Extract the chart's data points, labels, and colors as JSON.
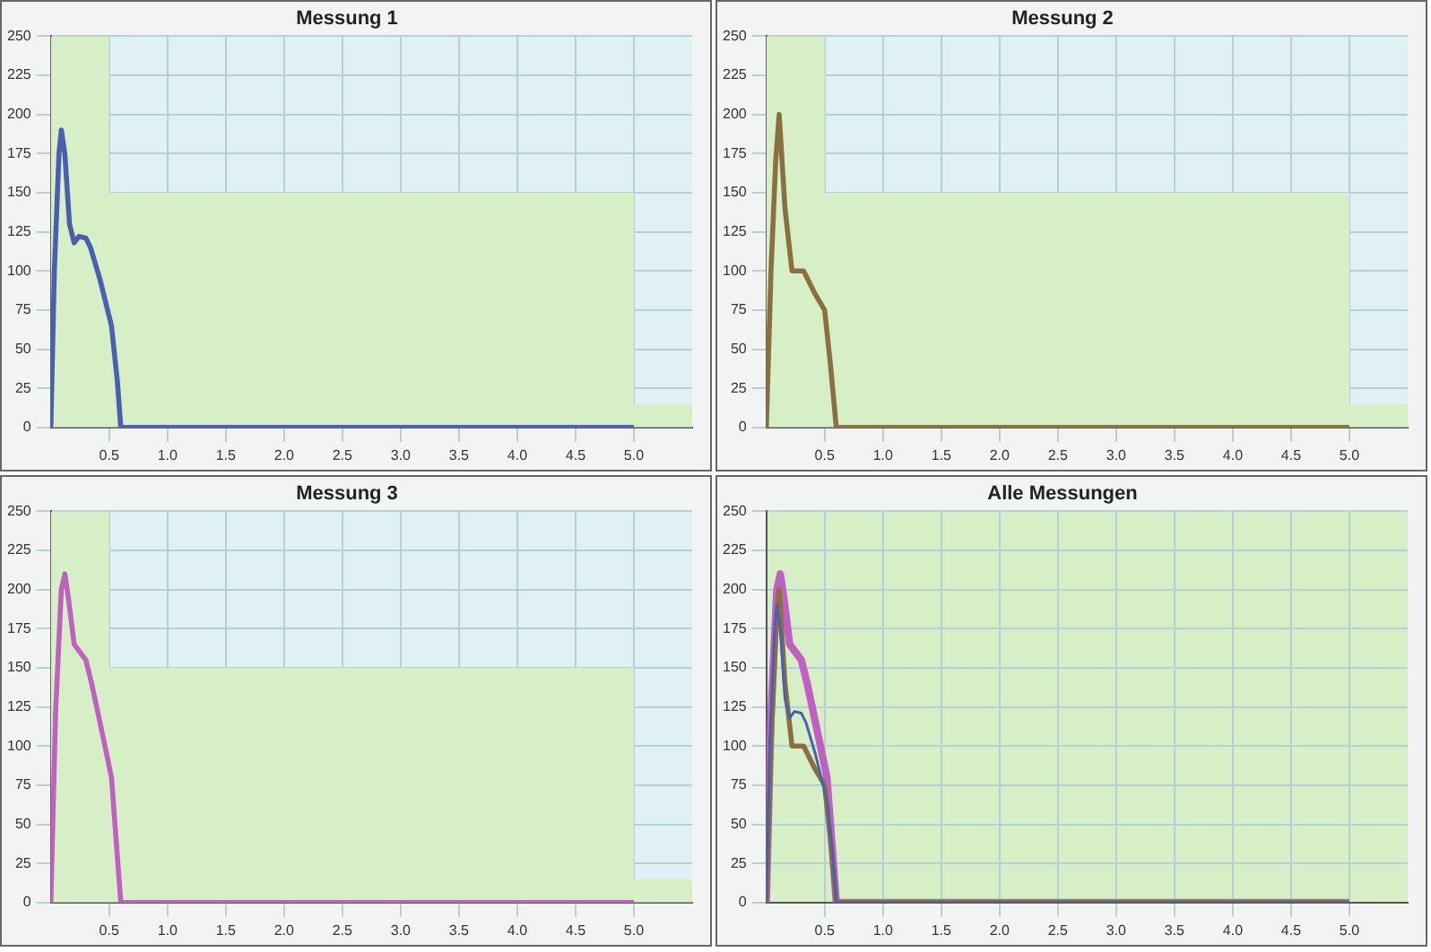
{
  "chart_data": [
    {
      "type": "line",
      "title": "Messung 1",
      "xlim": [
        0,
        5.5
      ],
      "ylim": [
        0,
        250
      ],
      "grid": true,
      "marker": "none",
      "xticks": [
        {
          "value": 0.5,
          "label": "0.5"
        },
        {
          "value": 1,
          "label": "1.0"
        },
        {
          "value": 1.5,
          "label": "1.5"
        },
        {
          "value": 2,
          "label": "2.0"
        },
        {
          "value": 2.5,
          "label": "2.5"
        },
        {
          "value": 3,
          "label": "3.0"
        },
        {
          "value": 3.5,
          "label": "3.5"
        },
        {
          "value": 4,
          "label": "4.0"
        },
        {
          "value": 4.5,
          "label": "4.5"
        },
        {
          "value": 5,
          "label": "5.0"
        }
      ],
      "yticks": [
        0,
        25,
        50,
        75,
        100,
        125,
        150,
        175,
        200,
        225,
        250
      ],
      "series": [
        {
          "type": "area",
          "color": "#d6efc6",
          "x": [
            0,
            0.5,
            0.5,
            5,
            5,
            5.5
          ],
          "values": [
            250,
            250,
            150,
            150,
            15,
            15
          ]
        },
        {
          "color": "#4a5fb0",
          "x": [
            0,
            0.03,
            0.07,
            0.09,
            0.12,
            0.16,
            0.2,
            0.24,
            0.3,
            0.34,
            0.42,
            0.52,
            0.57,
            0.6,
            5
          ],
          "values": [
            0,
            100,
            175,
            190,
            175,
            130,
            118,
            122,
            121,
            115,
            95,
            65,
            30,
            0,
            0
          ]
        }
      ]
    },
    {
      "type": "line",
      "title": "Messung 2",
      "xlim": [
        0,
        5.5
      ],
      "ylim": [
        0,
        250
      ],
      "grid": true,
      "marker": "none",
      "xticks": [
        {
          "value": 0.5,
          "label": "0.5"
        },
        {
          "value": 1,
          "label": "1.0"
        },
        {
          "value": 1.5,
          "label": "1.5"
        },
        {
          "value": 2,
          "label": "2.0"
        },
        {
          "value": 2.5,
          "label": "2.5"
        },
        {
          "value": 3,
          "label": "3.0"
        },
        {
          "value": 3.5,
          "label": "3.5"
        },
        {
          "value": 4,
          "label": "4.0"
        },
        {
          "value": 4.5,
          "label": "4.5"
        },
        {
          "value": 5,
          "label": "5.0"
        }
      ],
      "yticks": [
        0,
        25,
        50,
        75,
        100,
        125,
        150,
        175,
        200,
        225,
        250
      ],
      "series": [
        {
          "type": "area",
          "color": "#d6efc6",
          "x": [
            0,
            0.5,
            0.5,
            5,
            5,
            5.5
          ],
          "values": [
            250,
            250,
            150,
            150,
            15,
            15
          ]
        },
        {
          "color": "#8a7040",
          "x": [
            0,
            0.04,
            0.08,
            0.11,
            0.16,
            0.22,
            0.32,
            0.42,
            0.5,
            0.55,
            0.6,
            5
          ],
          "values": [
            0,
            100,
            170,
            200,
            140,
            100,
            100,
            85,
            75,
            40,
            0,
            0
          ]
        }
      ]
    },
    {
      "type": "line",
      "title": "Messung 3",
      "xlim": [
        0,
        5.5
      ],
      "ylim": [
        0,
        250
      ],
      "grid": true,
      "marker": "none",
      "xticks": [
        {
          "value": 0.5,
          "label": "0.5"
        },
        {
          "value": 1,
          "label": "1.0"
        },
        {
          "value": 1.5,
          "label": "1.5"
        },
        {
          "value": 2,
          "label": "2.0"
        },
        {
          "value": 2.5,
          "label": "2.5"
        },
        {
          "value": 3,
          "label": "3.0"
        },
        {
          "value": 3.5,
          "label": "3.5"
        },
        {
          "value": 4,
          "label": "4.0"
        },
        {
          "value": 4.5,
          "label": "4.5"
        },
        {
          "value": 5,
          "label": "5.0"
        }
      ],
      "yticks": [
        0,
        25,
        50,
        75,
        100,
        125,
        150,
        175,
        200,
        225,
        250
      ],
      "series": [
        {
          "type": "area",
          "color": "#d6efc6",
          "x": [
            0,
            0.5,
            0.5,
            5,
            5,
            5.5
          ],
          "values": [
            250,
            250,
            150,
            150,
            15,
            15
          ]
        },
        {
          "color": "#c060c0",
          "x": [
            0,
            0.04,
            0.09,
            0.12,
            0.15,
            0.2,
            0.25,
            0.3,
            0.35,
            0.45,
            0.52,
            0.56,
            0.6,
            5
          ],
          "values": [
            0,
            120,
            200,
            210,
            195,
            165,
            160,
            155,
            140,
            105,
            80,
            40,
            0,
            0
          ]
        }
      ]
    },
    {
      "type": "line",
      "title": "Alle Messungen",
      "xlim": [
        0,
        5.5
      ],
      "ylim": [
        0,
        250
      ],
      "grid": true,
      "marker": "none",
      "xticks": [
        {
          "value": 0.5,
          "label": "0.5"
        },
        {
          "value": 1,
          "label": "1.0"
        },
        {
          "value": 1.5,
          "label": "1.5"
        },
        {
          "value": 2,
          "label": "2.0"
        },
        {
          "value": 2.5,
          "label": "2.5"
        },
        {
          "value": 3,
          "label": "3.0"
        },
        {
          "value": 3.5,
          "label": "3.5"
        },
        {
          "value": 4,
          "label": "4.0"
        },
        {
          "value": 4.5,
          "label": "4.5"
        },
        {
          "value": 5,
          "label": "5.0"
        }
      ],
      "yticks": [
        0,
        25,
        50,
        75,
        100,
        125,
        150,
        175,
        200,
        225,
        250
      ],
      "series": [
        {
          "color": "#4a5fb0",
          "x": [
            0,
            0.03,
            0.07,
            0.09,
            0.12,
            0.16,
            0.2,
            0.24,
            0.3,
            0.34,
            0.42,
            0.52,
            0.57,
            0.6,
            5
          ],
          "values": [
            0,
            100,
            175,
            190,
            175,
            130,
            118,
            122,
            121,
            115,
            95,
            65,
            30,
            0,
            0
          ]
        },
        {
          "color": "#8a7040",
          "x": [
            0,
            0.04,
            0.08,
            0.11,
            0.16,
            0.22,
            0.32,
            0.42,
            0.5,
            0.55,
            0.6,
            5
          ],
          "values": [
            0,
            100,
            170,
            200,
            140,
            100,
            100,
            85,
            75,
            40,
            0,
            0
          ]
        },
        {
          "color": "#c060c0",
          "x": [
            0,
            0.04,
            0.09,
            0.12,
            0.15,
            0.2,
            0.25,
            0.3,
            0.35,
            0.45,
            0.52,
            0.56,
            0.6,
            5
          ],
          "values": [
            0,
            120,
            200,
            210,
            195,
            165,
            160,
            155,
            140,
            105,
            80,
            40,
            0,
            0
          ]
        }
      ]
    }
  ]
}
